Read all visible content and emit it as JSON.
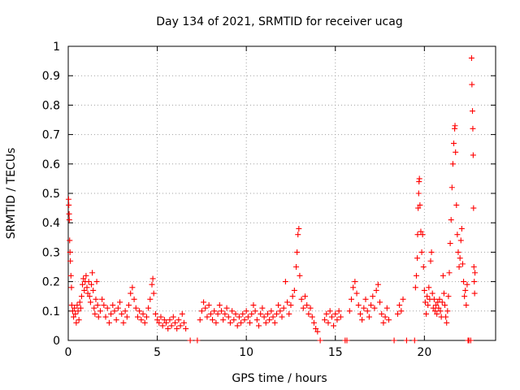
{
  "chart_data": {
    "type": "scatter",
    "title": "Day 134 of 2021, SRMTID for receiver ucag",
    "xlabel": "GPS time / hours",
    "ylabel": "SRMTID / TECUs",
    "xlim": [
      0,
      24
    ],
    "ylim": [
      0,
      1
    ],
    "grid": true,
    "legend": "none",
    "marker": "+",
    "color": "#ff0000",
    "xticks": [
      0,
      5,
      10,
      15,
      20
    ],
    "xtick_labels": [
      "0",
      "5",
      "10",
      "15",
      "20"
    ],
    "yticks": [
      0,
      0.1,
      0.2,
      0.3,
      0.4,
      0.5,
      0.6,
      0.7,
      0.8,
      0.9,
      1
    ],
    "ytick_labels": [
      "0",
      "0.1",
      "0.2",
      "0.3",
      "0.4",
      "0.5",
      "0.6",
      "0.7",
      "0.8",
      "0.9",
      "1"
    ],
    "series": [
      {
        "name": "SRMTID",
        "points": [
          [
            0.02,
            0.48
          ],
          [
            0.03,
            0.46
          ],
          [
            0.05,
            0.43
          ],
          [
            0.06,
            0.41
          ],
          [
            0.08,
            0.34
          ],
          [
            0.1,
            0.3
          ],
          [
            0.12,
            0.27
          ],
          [
            0.15,
            0.22
          ],
          [
            0.18,
            0.18
          ],
          [
            0.2,
            0.12
          ],
          [
            0.25,
            0.1
          ],
          [
            0.3,
            0.08
          ],
          [
            0.35,
            0.11
          ],
          [
            0.4,
            0.09
          ],
          [
            0.45,
            0.06
          ],
          [
            0.5,
            0.12
          ],
          [
            0.55,
            0.1
          ],
          [
            0.6,
            0.07
          ],
          [
            0.65,
            0.13
          ],
          [
            0.7,
            0.11
          ],
          [
            0.75,
            0.15
          ],
          [
            0.8,
            0.19
          ],
          [
            0.85,
            0.21
          ],
          [
            0.9,
            0.17
          ],
          [
            0.95,
            0.2
          ],
          [
            1.0,
            0.22
          ],
          [
            1.05,
            0.18
          ],
          [
            1.1,
            0.16
          ],
          [
            1.15,
            0.2
          ],
          [
            1.2,
            0.15
          ],
          [
            1.25,
            0.13
          ],
          [
            1.3,
            0.19
          ],
          [
            1.35,
            0.23
          ],
          [
            1.4,
            0.17
          ],
          [
            1.45,
            0.11
          ],
          [
            1.5,
            0.09
          ],
          [
            1.55,
            0.14
          ],
          [
            1.6,
            0.2
          ],
          [
            1.65,
            0.12
          ],
          [
            1.7,
            0.08
          ],
          [
            1.8,
            0.1
          ],
          [
            1.9,
            0.14
          ],
          [
            2.0,
            0.12
          ],
          [
            2.1,
            0.08
          ],
          [
            2.2,
            0.11
          ],
          [
            2.3,
            0.06
          ],
          [
            2.4,
            0.09
          ],
          [
            2.5,
            0.12
          ],
          [
            2.6,
            0.1
          ],
          [
            2.7,
            0.07
          ],
          [
            2.8,
            0.11
          ],
          [
            2.9,
            0.13
          ],
          [
            3.0,
            0.09
          ],
          [
            3.1,
            0.06
          ],
          [
            3.2,
            0.1
          ],
          [
            3.3,
            0.08
          ],
          [
            3.4,
            0.12
          ],
          [
            3.5,
            0.16
          ],
          [
            3.6,
            0.18
          ],
          [
            3.7,
            0.14
          ],
          [
            3.8,
            0.11
          ],
          [
            3.9,
            0.08
          ],
          [
            4.0,
            0.1
          ],
          [
            4.1,
            0.07
          ],
          [
            4.2,
            0.09
          ],
          [
            4.3,
            0.06
          ],
          [
            4.4,
            0.08
          ],
          [
            4.5,
            0.11
          ],
          [
            4.6,
            0.14
          ],
          [
            4.7,
            0.19
          ],
          [
            4.75,
            0.21
          ],
          [
            4.8,
            0.16
          ],
          [
            4.9,
            0.09
          ],
          [
            5.0,
            0.07
          ],
          [
            5.1,
            0.06
          ],
          [
            5.2,
            0.08
          ],
          [
            5.3,
            0.05
          ],
          [
            5.4,
            0.07
          ],
          [
            5.5,
            0.06
          ],
          [
            5.6,
            0.04
          ],
          [
            5.7,
            0.07
          ],
          [
            5.8,
            0.05
          ],
          [
            5.9,
            0.08
          ],
          [
            6.0,
            0.06
          ],
          [
            6.1,
            0.04
          ],
          [
            6.2,
            0.07
          ],
          [
            6.3,
            0.05
          ],
          [
            6.4,
            0.09
          ],
          [
            6.5,
            0.06
          ],
          [
            6.6,
            0.04
          ],
          [
            6.85,
            0.0
          ],
          [
            7.25,
            0.0
          ],
          [
            7.4,
            0.07
          ],
          [
            7.5,
            0.1
          ],
          [
            7.6,
            0.13
          ],
          [
            7.7,
            0.11
          ],
          [
            7.8,
            0.08
          ],
          [
            7.9,
            0.12
          ],
          [
            8.0,
            0.09
          ],
          [
            8.1,
            0.07
          ],
          [
            8.2,
            0.1
          ],
          [
            8.3,
            0.06
          ],
          [
            8.4,
            0.09
          ],
          [
            8.5,
            0.12
          ],
          [
            8.6,
            0.1
          ],
          [
            8.7,
            0.07
          ],
          [
            8.8,
            0.09
          ],
          [
            8.9,
            0.11
          ],
          [
            9.0,
            0.08
          ],
          [
            9.1,
            0.06
          ],
          [
            9.2,
            0.1
          ],
          [
            9.3,
            0.07
          ],
          [
            9.4,
            0.09
          ],
          [
            9.5,
            0.05
          ],
          [
            9.6,
            0.08
          ],
          [
            9.7,
            0.06
          ],
          [
            9.8,
            0.09
          ],
          [
            9.9,
            0.07
          ],
          [
            10.0,
            0.1
          ],
          [
            10.1,
            0.08
          ],
          [
            10.2,
            0.06
          ],
          [
            10.3,
            0.09
          ],
          [
            10.4,
            0.12
          ],
          [
            10.5,
            0.1
          ],
          [
            10.6,
            0.07
          ],
          [
            10.7,
            0.05
          ],
          [
            10.8,
            0.09
          ],
          [
            10.9,
            0.11
          ],
          [
            11.0,
            0.08
          ],
          [
            11.1,
            0.06
          ],
          [
            11.2,
            0.09
          ],
          [
            11.3,
            0.07
          ],
          [
            11.4,
            0.1
          ],
          [
            11.5,
            0.08
          ],
          [
            11.6,
            0.06
          ],
          [
            11.7,
            0.09
          ],
          [
            11.8,
            0.12
          ],
          [
            11.9,
            0.1
          ],
          [
            12.0,
            0.08
          ],
          [
            12.1,
            0.11
          ],
          [
            12.2,
            0.2
          ],
          [
            12.3,
            0.13
          ],
          [
            12.4,
            0.09
          ],
          [
            12.5,
            0.12
          ],
          [
            12.6,
            0.15
          ],
          [
            12.7,
            0.17
          ],
          [
            12.8,
            0.25
          ],
          [
            12.85,
            0.3
          ],
          [
            12.9,
            0.36
          ],
          [
            12.95,
            0.38
          ],
          [
            13.0,
            0.22
          ],
          [
            13.1,
            0.14
          ],
          [
            13.2,
            0.11
          ],
          [
            13.3,
            0.15
          ],
          [
            13.4,
            0.12
          ],
          [
            13.5,
            0.09
          ],
          [
            13.6,
            0.11
          ],
          [
            13.7,
            0.08
          ],
          [
            13.8,
            0.06
          ],
          [
            13.9,
            0.04
          ],
          [
            14.0,
            0.03
          ],
          [
            14.15,
            0.0
          ],
          [
            14.4,
            0.07
          ],
          [
            14.5,
            0.09
          ],
          [
            14.6,
            0.06
          ],
          [
            14.7,
            0.1
          ],
          [
            14.8,
            0.08
          ],
          [
            14.9,
            0.05
          ],
          [
            15.0,
            0.09
          ],
          [
            15.1,
            0.07
          ],
          [
            15.2,
            0.1
          ],
          [
            15.3,
            0.08
          ],
          [
            15.55,
            0.0
          ],
          [
            15.65,
            0.0
          ],
          [
            15.8,
            0.1
          ],
          [
            15.9,
            0.14
          ],
          [
            16.0,
            0.18
          ],
          [
            16.1,
            0.2
          ],
          [
            16.2,
            0.16
          ],
          [
            16.3,
            0.12
          ],
          [
            16.4,
            0.09
          ],
          [
            16.5,
            0.07
          ],
          [
            16.6,
            0.11
          ],
          [
            16.7,
            0.14
          ],
          [
            16.8,
            0.1
          ],
          [
            16.9,
            0.08
          ],
          [
            17.0,
            0.12
          ],
          [
            17.1,
            0.15
          ],
          [
            17.2,
            0.11
          ],
          [
            17.3,
            0.17
          ],
          [
            17.4,
            0.19
          ],
          [
            17.5,
            0.13
          ],
          [
            17.6,
            0.09
          ],
          [
            17.7,
            0.06
          ],
          [
            17.8,
            0.08
          ],
          [
            17.9,
            0.11
          ],
          [
            18.0,
            0.07
          ],
          [
            18.3,
            0.0
          ],
          [
            18.5,
            0.09
          ],
          [
            18.6,
            0.12
          ],
          [
            18.7,
            0.1
          ],
          [
            18.8,
            0.14
          ],
          [
            19.0,
            0.0
          ],
          [
            19.45,
            0.0
          ],
          [
            19.5,
            0.18
          ],
          [
            19.55,
            0.22
          ],
          [
            19.6,
            0.28
          ],
          [
            19.62,
            0.36
          ],
          [
            19.65,
            0.45
          ],
          [
            19.68,
            0.5
          ],
          [
            19.7,
            0.54
          ],
          [
            19.72,
            0.55
          ],
          [
            19.75,
            0.46
          ],
          [
            19.8,
            0.37
          ],
          [
            19.85,
            0.3
          ],
          [
            19.9,
            0.36
          ],
          [
            19.95,
            0.25
          ],
          [
            20.0,
            0.17
          ],
          [
            20.05,
            0.13
          ],
          [
            20.1,
            0.09
          ],
          [
            20.15,
            0.15
          ],
          [
            20.2,
            0.12
          ],
          [
            20.25,
            0.18
          ],
          [
            20.3,
            0.14
          ],
          [
            20.35,
            0.27
          ],
          [
            20.4,
            0.3
          ],
          [
            20.45,
            0.16
          ],
          [
            20.5,
            0.11
          ],
          [
            20.55,
            0.14
          ],
          [
            20.6,
            0.1
          ],
          [
            20.65,
            0.12
          ],
          [
            20.7,
            0.09
          ],
          [
            20.75,
            0.13
          ],
          [
            20.8,
            0.11
          ],
          [
            20.85,
            0.14
          ],
          [
            20.9,
            0.1
          ],
          [
            20.95,
            0.08
          ],
          [
            21.0,
            0.13
          ],
          [
            21.05,
            0.22
          ],
          [
            21.1,
            0.16
          ],
          [
            21.15,
            0.12
          ],
          [
            21.2,
            0.08
          ],
          [
            21.25,
            0.06
          ],
          [
            21.3,
            0.1
          ],
          [
            21.35,
            0.15
          ],
          [
            21.4,
            0.23
          ],
          [
            21.45,
            0.33
          ],
          [
            21.5,
            0.41
          ],
          [
            21.55,
            0.52
          ],
          [
            21.6,
            0.6
          ],
          [
            21.65,
            0.67
          ],
          [
            21.7,
            0.72
          ],
          [
            21.72,
            0.73
          ],
          [
            21.75,
            0.64
          ],
          [
            21.8,
            0.46
          ],
          [
            21.85,
            0.36
          ],
          [
            21.9,
            0.3
          ],
          [
            21.95,
            0.25
          ],
          [
            22.0,
            0.28
          ],
          [
            22.05,
            0.34
          ],
          [
            22.1,
            0.38
          ],
          [
            22.15,
            0.26
          ],
          [
            22.2,
            0.2
          ],
          [
            22.25,
            0.15
          ],
          [
            22.3,
            0.17
          ],
          [
            22.35,
            0.12
          ],
          [
            22.4,
            0.19
          ],
          [
            22.45,
            0.0
          ],
          [
            22.5,
            0.0
          ],
          [
            22.6,
            0.0
          ],
          [
            22.65,
            0.96
          ],
          [
            22.67,
            0.87
          ],
          [
            22.7,
            0.78
          ],
          [
            22.72,
            0.72
          ],
          [
            22.74,
            0.63
          ],
          [
            22.76,
            0.45
          ],
          [
            22.78,
            0.25
          ],
          [
            22.8,
            0.2
          ],
          [
            22.82,
            0.16
          ],
          [
            22.84,
            0.23
          ]
        ]
      }
    ]
  }
}
